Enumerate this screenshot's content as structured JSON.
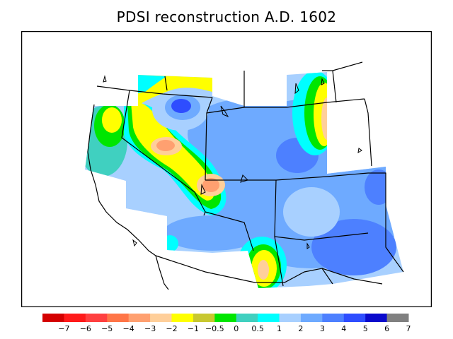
{
  "title": "PDSI reconstruction A.D. 1602",
  "legend": {
    "colors": [
      "#d40000",
      "#ff1a1a",
      "#ff4040",
      "#ff7547",
      "#ffa070",
      "#ffcf9a",
      "#ffff00",
      "#c8c830",
      "#00e600",
      "#40d0c0",
      "#00ffff",
      "#a8d0ff",
      "#6eaaff",
      "#4d80ff",
      "#2e4dff",
      "#0a0acc",
      "#808080"
    ],
    "labels": [
      "−7",
      "−6",
      "−5",
      "−4",
      "−3",
      "−2",
      "−1",
      "−0.5",
      "0",
      "0.5",
      "1",
      "2",
      "3",
      "4",
      "5",
      "6",
      "7"
    ]
  }
}
